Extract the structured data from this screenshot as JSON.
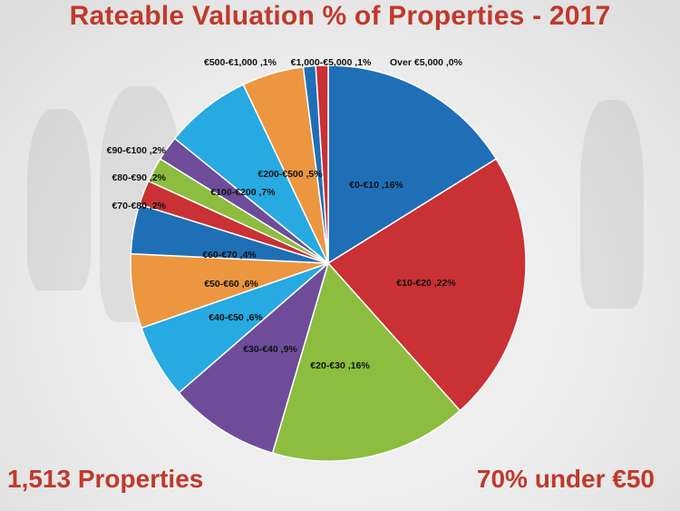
{
  "colors": {
    "blue": "#1f6fb6",
    "red": "#c93134",
    "green": "#8cbd3f",
    "purple": "#6e4c9a",
    "cyan": "#27a9e1",
    "orange": "#ec9640",
    "title": "#c0392b"
  },
  "chart_data": {
    "type": "pie",
    "title": "Rateable Valuation % of Properties - 2017",
    "slices": [
      {
        "label": "€0-€10",
        "value": 16,
        "display": "€0-€10 ,16%",
        "color": "#1f6fb6"
      },
      {
        "label": "€10-€20",
        "value": 22,
        "display": "€10-€20 ,22%",
        "color": "#c93134"
      },
      {
        "label": "€20-€30",
        "value": 16,
        "display": "€20-€30 ,16%",
        "color": "#8cbd3f"
      },
      {
        "label": "€30-€40",
        "value": 9,
        "display": "€30-€40 ,9%",
        "color": "#6e4c9a"
      },
      {
        "label": "€40-€50",
        "value": 6,
        "display": "€40-€50 ,6%",
        "color": "#27a9e1"
      },
      {
        "label": "€50-€60",
        "value": 6,
        "display": "€50-€60 ,6%",
        "color": "#ec9640"
      },
      {
        "label": "€60-€70",
        "value": 4,
        "display": "€60-€70 ,4%",
        "color": "#1f6fb6"
      },
      {
        "label": "€70-€80",
        "value": 2,
        "display": "€70-€80 ,2%",
        "color": "#c93134"
      },
      {
        "label": "€80-€90",
        "value": 2,
        "display": "€80-€90 ,2%",
        "color": "#8cbd3f"
      },
      {
        "label": "€90-€100",
        "value": 2,
        "display": "€90-€100 ,2%",
        "color": "#6e4c9a"
      },
      {
        "label": "€100-€200",
        "value": 7,
        "display": "€100-€200 ,7%",
        "color": "#27a9e1"
      },
      {
        "label": "€200-€500",
        "value": 5,
        "display": "€200-€500 ,5%",
        "color": "#ec9640"
      },
      {
        "label": "€500-€1,000",
        "value": 1,
        "display": "€500-€1,000 ,1%",
        "color": "#1f6fb6"
      },
      {
        "label": "€1,000-€5,000",
        "value": 1,
        "display": "€1,000-€5,000 ,1%",
        "color": "#c93134"
      },
      {
        "label": "Over €5,000",
        "value": 0,
        "display": "Over €5,000 ,0%",
        "color": "#8cbd3f"
      }
    ]
  },
  "footer": {
    "left": "1,513 Properties",
    "right": "70% under €50"
  }
}
